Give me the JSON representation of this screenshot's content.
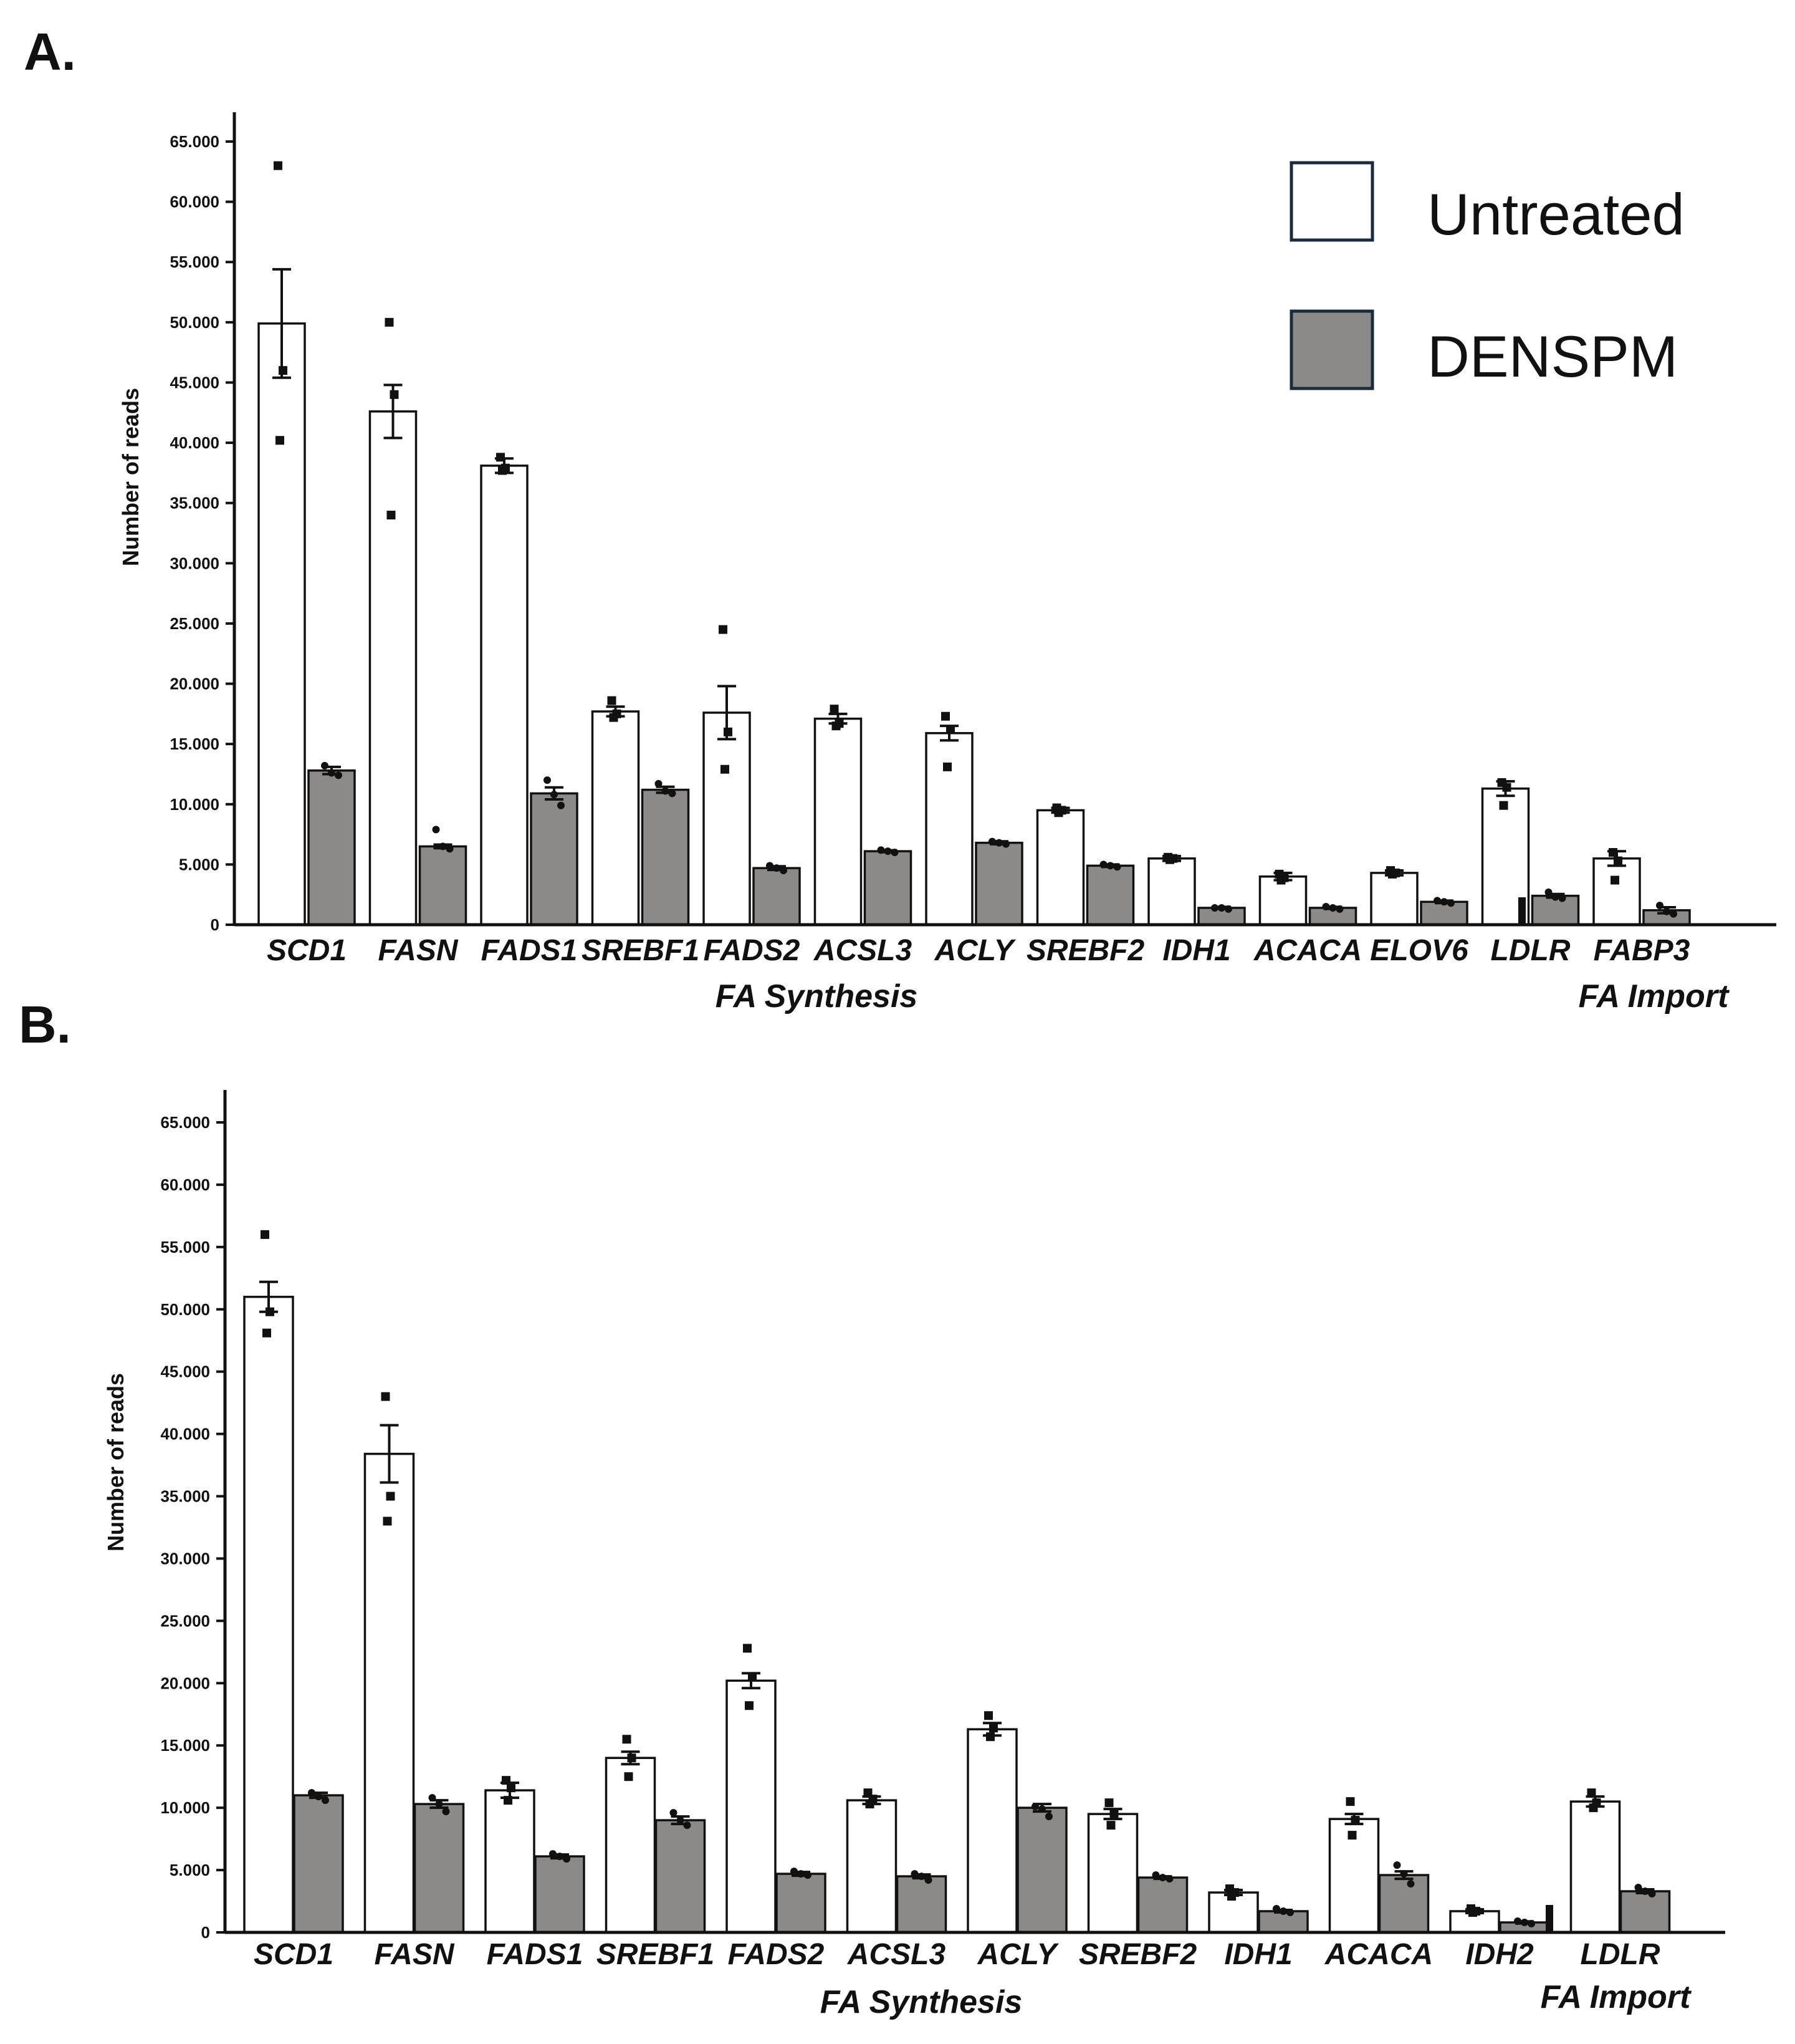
{
  "figure": {
    "legend": [
      {
        "label": "Untreated",
        "color": "#ffffff",
        "edge": "#1c2a3d"
      },
      {
        "label": "DENSPM",
        "color": "#8c8a88",
        "edge": "#1c2a3d"
      }
    ]
  },
  "chart_data": [
    {
      "type": "bar",
      "panel": "A.",
      "title": "",
      "xlabel": "",
      "ylabel": "Number of reads",
      "ylim": [
        0,
        65000
      ],
      "yticks": [
        "0",
        "5.000",
        "10.000",
        "15.000",
        "20.000",
        "25.000",
        "30.000",
        "35.000",
        "40.000",
        "45.000",
        "50.000",
        "55.000",
        "60.000",
        "65.000"
      ],
      "categories": [
        "SCD1",
        "FASN",
        "FADS1",
        "SREBF1",
        "FADS2",
        "ACSL3",
        "ACLY",
        "SREBF2",
        "IDH1",
        "ACACA",
        "ELOV6",
        "LDLR",
        "FABP3"
      ],
      "groups": [
        {
          "label": "FA Synthesis",
          "from": 0,
          "to": 10
        },
        {
          "label": "FA Import",
          "from": 11,
          "to": 12
        }
      ],
      "series": [
        {
          "name": "Untreated",
          "values": [
            49900,
            42600,
            38100,
            17700,
            17600,
            17100,
            15900,
            9500,
            5500,
            4000,
            4300,
            11300,
            5500
          ],
          "errors": [
            4500,
            2200,
            600,
            400,
            2200,
            400,
            600,
            200,
            200,
            300,
            200,
            600,
            600
          ],
          "points": [
            [
              63000,
              46000,
              40200
            ],
            [
              50000,
              44000,
              34000
            ],
            [
              38800,
              37900,
              37700
            ],
            [
              18600,
              17500,
              17200
            ],
            [
              24500,
              16000,
              12900
            ],
            [
              17900,
              16700,
              16500
            ],
            [
              17300,
              16200,
              13100
            ],
            [
              9700,
              9500,
              9300
            ],
            [
              5600,
              5500,
              5400
            ],
            [
              4200,
              3900,
              3700
            ],
            [
              4500,
              4300,
              4200
            ],
            [
              11800,
              11400,
              9900
            ],
            [
              6000,
              5300,
              3700
            ]
          ]
        },
        {
          "name": "DENSPM",
          "values": [
            12800,
            6500,
            10900,
            11200,
            4700,
            6100,
            6800,
            4900,
            1400,
            1400,
            1900,
            2400,
            1200
          ],
          "errors": [
            300,
            150,
            500,
            250,
            150,
            80,
            120,
            100,
            80,
            80,
            100,
            150,
            250
          ],
          "points": [
            [
              13200,
              12600,
              12400
            ],
            [
              7900,
              6500,
              6300
            ],
            [
              12000,
              10800,
              9900
            ],
            [
              11700,
              11100,
              10900
            ],
            [
              4900,
              4700,
              4500
            ],
            [
              6200,
              6100,
              6000
            ],
            [
              6900,
              6800,
              6700
            ],
            [
              5000,
              4900,
              4800
            ],
            [
              1400,
              1400,
              1300
            ],
            [
              1500,
              1400,
              1300
            ],
            [
              2000,
              1900,
              1800
            ],
            [
              2700,
              2300,
              2200
            ],
            [
              1600,
              1100,
              900
            ]
          ]
        }
      ]
    },
    {
      "type": "bar",
      "panel": "B.",
      "title": "",
      "xlabel": "",
      "ylabel": "Number of reads",
      "ylim": [
        0,
        65000
      ],
      "yticks": [
        "0",
        "5.000",
        "10.000",
        "15.000",
        "20.000",
        "25.000",
        "30.000",
        "35.000",
        "40.000",
        "45.000",
        "50.000",
        "55.000",
        "60.000",
        "65.000"
      ],
      "categories": [
        "SCD1",
        "FASN",
        "FADS1",
        "SREBF1",
        "FADS2",
        "ACSL3",
        "ACLY",
        "SREBF2",
        "IDH1",
        "ACACA",
        "IDH2",
        "LDLR"
      ],
      "groups": [
        {
          "label": "FA Synthesis",
          "from": 0,
          "to": 10
        },
        {
          "label": "FA Import",
          "from": 11,
          "to": 11
        }
      ],
      "series": [
        {
          "name": "Untreated",
          "values": [
            51000,
            38400,
            11400,
            14000,
            20200,
            10600,
            16300,
            9500,
            3200,
            9100,
            1700,
            10500
          ],
          "errors": [
            1200,
            2300,
            600,
            500,
            600,
            300,
            500,
            400,
            200,
            400,
            150,
            400
          ],
          "points": [
            [
              56000,
              49800,
              48100
            ],
            [
              43000,
              35000,
              33000
            ],
            [
              12200,
              11600,
              10600
            ],
            [
              15500,
              14000,
              12500
            ],
            [
              22800,
              20500,
              18200
            ],
            [
              11200,
              10700,
              10300
            ],
            [
              17400,
              16400,
              15700
            ],
            [
              10400,
              9500,
              8600
            ],
            [
              3500,
              3200,
              2900
            ],
            [
              10500,
              9000,
              7800
            ],
            [
              1900,
              1700,
              1600
            ],
            [
              11200,
              10400,
              10000
            ]
          ]
        },
        {
          "name": "DENSPM",
          "values": [
            11000,
            10300,
            6100,
            9000,
            4700,
            4500,
            10000,
            4400,
            1700,
            4600,
            800,
            3300
          ],
          "errors": [
            200,
            300,
            150,
            300,
            150,
            150,
            300,
            100,
            100,
            300,
            80,
            150
          ],
          "points": [
            [
              11200,
              10900,
              10600
            ],
            [
              10800,
              10300,
              9700
            ],
            [
              6300,
              6100,
              5900
            ],
            [
              9600,
              9000,
              8600
            ],
            [
              4900,
              4700,
              4600
            ],
            [
              4700,
              4500,
              4200
            ],
            [
              10100,
              9900,
              9300
            ],
            [
              4600,
              4400,
              4300
            ],
            [
              1900,
              1700,
              1600
            ],
            [
              5400,
              4700,
              3900
            ],
            [
              900,
              800,
              700
            ],
            [
              3600,
              3300,
              3100
            ]
          ]
        }
      ]
    }
  ]
}
